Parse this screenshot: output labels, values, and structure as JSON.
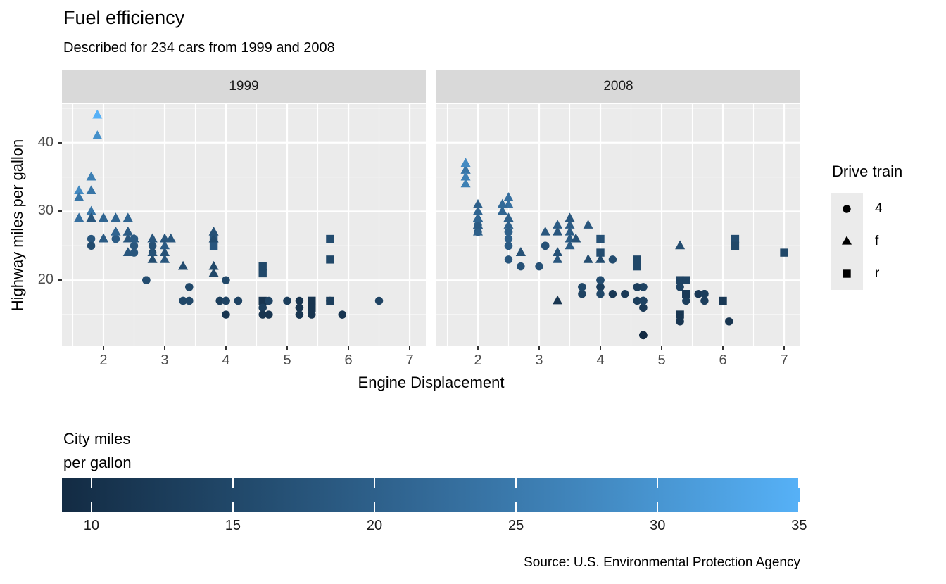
{
  "title": "Fuel efficiency",
  "subtitle": "Described for 234 cars from 1999 and 2008",
  "caption": "Source: U.S. Environmental Protection Agency",
  "facets": [
    {
      "label": "1999"
    },
    {
      "label": "2008"
    }
  ],
  "axes": {
    "x_label": "Engine Displacement",
    "y_label": "Highway miles per gallon",
    "x_ticks": [
      2,
      3,
      4,
      5,
      6,
      7
    ],
    "x_minor": [
      1.5,
      2.5,
      3.5,
      4.5,
      5.5,
      6.5
    ],
    "y_ticks": [
      20,
      30,
      40
    ],
    "y_minor": [
      15,
      25,
      35,
      45
    ],
    "x_domain": [
      1.322,
      7.264
    ],
    "y_domain": [
      10.4,
      45.6
    ]
  },
  "shape_legend": {
    "title": "Drive train",
    "items": [
      {
        "shape": "circle",
        "label": "4"
      },
      {
        "shape": "triangle",
        "label": "f"
      },
      {
        "shape": "square",
        "label": "r"
      }
    ]
  },
  "color_legend": {
    "title_lines": [
      "City miles",
      "per gallon"
    ],
    "ticks": [
      10,
      15,
      20,
      25,
      30,
      35
    ],
    "domain": [
      9,
      35
    ],
    "gradient_stops": [
      "#132B43",
      "#224A6C",
      "#336A98",
      "#448DC6",
      "#56B1F7"
    ]
  },
  "colors": {
    "panel_bg": "#EBEBEB",
    "strip_bg": "#D9D9D9",
    "grid": "#FFFFFF",
    "tick_mark": "#333333",
    "tick_label": "#4D4D4D",
    "legend_key_bg": "#EBEBEB",
    "symbol": "#000000"
  },
  "chart_data": {
    "type": "scatter",
    "facet_by": "year",
    "x": "displ",
    "y": "hwy",
    "color": "cty",
    "shape": "drv",
    "point_format": [
      "displ",
      "hwy",
      "cty",
      "drv"
    ],
    "shape_map": {
      "4": "circle",
      "f": "triangle",
      "r": "square"
    },
    "points_1999": [
      [
        1.8,
        29,
        18,
        "f"
      ],
      [
        1.8,
        29,
        21,
        "f"
      ],
      [
        2.8,
        26,
        16,
        "f"
      ],
      [
        2.8,
        26,
        18,
        "f"
      ],
      [
        1.8,
        26,
        18,
        "4"
      ],
      [
        1.8,
        25,
        16,
        "4"
      ],
      [
        2.8,
        25,
        15,
        "4"
      ],
      [
        2.8,
        25,
        17,
        "4"
      ],
      [
        2.8,
        24,
        15,
        "4"
      ],
      [
        5.7,
        17,
        13,
        "r"
      ],
      [
        5.7,
        26,
        16,
        "r"
      ],
      [
        5.7,
        23,
        15,
        "r"
      ],
      [
        5.7,
        17,
        13,
        "4"
      ],
      [
        6.5,
        17,
        14,
        "4"
      ],
      [
        2.4,
        27,
        19,
        "f"
      ],
      [
        3.1,
        26,
        18,
        "f"
      ],
      [
        2.4,
        24,
        18,
        "f"
      ],
      [
        3.0,
        24,
        17,
        "f"
      ],
      [
        3.3,
        22,
        16,
        "f"
      ],
      [
        3.3,
        22,
        16,
        "f"
      ],
      [
        3.8,
        22,
        15,
        "f"
      ],
      [
        3.8,
        21,
        15,
        "f"
      ],
      [
        3.9,
        17,
        13,
        "4"
      ],
      [
        3.9,
        17,
        14,
        "4"
      ],
      [
        5.2,
        17,
        11,
        "4"
      ],
      [
        5.2,
        15,
        11,
        "4"
      ],
      [
        3.9,
        17,
        13,
        "4"
      ],
      [
        5.2,
        16,
        11,
        "4"
      ],
      [
        5.9,
        15,
        11,
        "4"
      ],
      [
        5.2,
        15,
        11,
        "4"
      ],
      [
        5.2,
        16,
        11,
        "4"
      ],
      [
        5.9,
        15,
        11,
        "4"
      ],
      [
        4.6,
        17,
        11,
        "r"
      ],
      [
        5.4,
        17,
        11,
        "r"
      ],
      [
        4.0,
        17,
        14,
        "4"
      ],
      [
        4.0,
        17,
        15,
        "4"
      ],
      [
        4.0,
        17,
        14,
        "4"
      ],
      [
        5.0,
        17,
        13,
        "4"
      ],
      [
        4.2,
        17,
        14,
        "4"
      ],
      [
        4.2,
        17,
        14,
        "4"
      ],
      [
        4.6,
        16,
        13,
        "4"
      ],
      [
        4.6,
        16,
        13,
        "4"
      ],
      [
        5.4,
        15,
        11,
        "4"
      ],
      [
        3.8,
        26,
        18,
        "r"
      ],
      [
        3.8,
        25,
        18,
        "r"
      ],
      [
        4.6,
        21,
        15,
        "r"
      ],
      [
        4.6,
        22,
        15,
        "r"
      ],
      [
        1.6,
        33,
        28,
        "f"
      ],
      [
        1.6,
        32,
        24,
        "f"
      ],
      [
        1.6,
        32,
        25,
        "f"
      ],
      [
        1.6,
        29,
        23,
        "f"
      ],
      [
        1.6,
        32,
        24,
        "f"
      ],
      [
        2.4,
        26,
        18,
        "f"
      ],
      [
        2.4,
        27,
        18,
        "f"
      ],
      [
        2.5,
        26,
        18,
        "f"
      ],
      [
        2.5,
        26,
        18,
        "f"
      ],
      [
        2.0,
        26,
        19,
        "f"
      ],
      [
        2.0,
        29,
        19,
        "f"
      ],
      [
        4.0,
        20,
        15,
        "4"
      ],
      [
        4.7,
        17,
        14,
        "4"
      ],
      [
        4.0,
        15,
        11,
        "4"
      ],
      [
        4.6,
        15,
        11,
        "4"
      ],
      [
        5.4,
        17,
        11,
        "r"
      ],
      [
        5.4,
        16,
        11,
        "r"
      ],
      [
        4.0,
        17,
        14,
        "4"
      ],
      [
        5.0,
        17,
        13,
        "4"
      ],
      [
        2.4,
        27,
        19,
        "f"
      ],
      [
        2.4,
        29,
        21,
        "f"
      ],
      [
        3.0,
        26,
        18,
        "f"
      ],
      [
        3.0,
        25,
        19,
        "f"
      ],
      [
        3.3,
        17,
        14,
        "4"
      ],
      [
        3.3,
        17,
        15,
        "4"
      ],
      [
        3.1,
        26,
        18,
        "f"
      ],
      [
        3.8,
        26,
        16,
        "f"
      ],
      [
        3.8,
        27,
        17,
        "f"
      ],
      [
        2.5,
        25,
        18,
        "4"
      ],
      [
        2.5,
        24,
        18,
        "4"
      ],
      [
        2.2,
        26,
        21,
        "4"
      ],
      [
        2.2,
        26,
        19,
        "4"
      ],
      [
        2.5,
        26,
        19,
        "4"
      ],
      [
        2.5,
        26,
        19,
        "4"
      ],
      [
        2.7,
        20,
        15,
        "4"
      ],
      [
        2.7,
        20,
        16,
        "4"
      ],
      [
        3.4,
        19,
        15,
        "4"
      ],
      [
        3.4,
        17,
        15,
        "4"
      ],
      [
        2.2,
        29,
        21,
        "f"
      ],
      [
        2.2,
        27,
        21,
        "f"
      ],
      [
        3.0,
        26,
        18,
        "f"
      ],
      [
        3.0,
        26,
        18,
        "f"
      ],
      [
        2.2,
        27,
        21,
        "f"
      ],
      [
        2.2,
        29,
        21,
        "f"
      ],
      [
        3.0,
        26,
        18,
        "f"
      ],
      [
        1.8,
        30,
        24,
        "f"
      ],
      [
        1.8,
        33,
        24,
        "f"
      ],
      [
        1.8,
        35,
        26,
        "f"
      ],
      [
        4.7,
        15,
        11,
        "4"
      ],
      [
        3.0,
        23,
        18,
        "f"
      ],
      [
        2.7,
        20,
        15,
        "4"
      ],
      [
        2.7,
        20,
        16,
        "4"
      ],
      [
        3.4,
        17,
        15,
        "4"
      ],
      [
        3.4,
        19,
        15,
        "4"
      ],
      [
        2.0,
        29,
        21,
        "f"
      ],
      [
        2.0,
        26,
        19,
        "f"
      ],
      [
        2.8,
        24,
        17,
        "f"
      ],
      [
        1.9,
        44,
        33,
        "f"
      ],
      [
        2.0,
        29,
        21,
        "f"
      ],
      [
        2.0,
        26,
        19,
        "f"
      ],
      [
        2.8,
        23,
        16,
        "f"
      ],
      [
        2.8,
        24,
        17,
        "f"
      ],
      [
        1.9,
        44,
        35,
        "f"
      ],
      [
        1.9,
        41,
        29,
        "f"
      ],
      [
        2.0,
        29,
        21,
        "f"
      ],
      [
        2.0,
        26,
        19,
        "f"
      ],
      [
        1.8,
        29,
        21,
        "f"
      ],
      [
        1.8,
        29,
        18,
        "f"
      ],
      [
        2.8,
        26,
        16,
        "f"
      ],
      [
        2.8,
        26,
        18,
        "f"
      ]
    ],
    "points_2008": [
      [
        2.0,
        31,
        20,
        "f"
      ],
      [
        2.0,
        30,
        21,
        "f"
      ],
      [
        3.1,
        27,
        18,
        "f"
      ],
      [
        2.0,
        28,
        20,
        "4"
      ],
      [
        2.0,
        27,
        19,
        "4"
      ],
      [
        3.1,
        25,
        17,
        "4"
      ],
      [
        3.1,
        25,
        15,
        "4"
      ],
      [
        3.1,
        25,
        17,
        "4"
      ],
      [
        4.2,
        23,
        16,
        "4"
      ],
      [
        5.3,
        20,
        14,
        "r"
      ],
      [
        5.3,
        15,
        11,
        "r"
      ],
      [
        5.3,
        20,
        14,
        "r"
      ],
      [
        6.0,
        17,
        12,
        "r"
      ],
      [
        6.2,
        26,
        16,
        "r"
      ],
      [
        6.2,
        25,
        15,
        "r"
      ],
      [
        7.0,
        24,
        15,
        "r"
      ],
      [
        5.3,
        19,
        14,
        "4"
      ],
      [
        5.3,
        14,
        11,
        "4"
      ],
      [
        2.4,
        30,
        22,
        "f"
      ],
      [
        3.5,
        29,
        18,
        "f"
      ],
      [
        3.6,
        26,
        17,
        "f"
      ],
      [
        3.3,
        24,
        17,
        "f"
      ],
      [
        3.3,
        24,
        17,
        "f"
      ],
      [
        3.3,
        17,
        11,
        "f"
      ],
      [
        3.8,
        23,
        16,
        "f"
      ],
      [
        4.0,
        23,
        16,
        "f"
      ],
      [
        3.7,
        19,
        15,
        "4"
      ],
      [
        3.7,
        18,
        14,
        "4"
      ],
      [
        4.7,
        19,
        14,
        "4"
      ],
      [
        4.7,
        19,
        14,
        "4"
      ],
      [
        4.7,
        12,
        9,
        "4"
      ],
      [
        4.7,
        17,
        13,
        "4"
      ],
      [
        4.7,
        12,
        9,
        "4"
      ],
      [
        4.7,
        17,
        13,
        "4"
      ],
      [
        5.7,
        18,
        13,
        "4"
      ],
      [
        4.7,
        16,
        12,
        "4"
      ],
      [
        4.7,
        12,
        9,
        "4"
      ],
      [
        4.7,
        17,
        13,
        "4"
      ],
      [
        4.7,
        17,
        13,
        "4"
      ],
      [
        4.7,
        16,
        12,
        "4"
      ],
      [
        5.7,
        17,
        13,
        "4"
      ],
      [
        5.4,
        18,
        12,
        "r"
      ],
      [
        4.0,
        19,
        13,
        "4"
      ],
      [
        4.6,
        19,
        13,
        "4"
      ],
      [
        4.6,
        17,
        13,
        "4"
      ],
      [
        5.4,
        17,
        13,
        "4"
      ],
      [
        4.0,
        26,
        17,
        "r"
      ],
      [
        4.0,
        24,
        16,
        "r"
      ],
      [
        4.6,
        23,
        15,
        "r"
      ],
      [
        4.6,
        22,
        15,
        "r"
      ],
      [
        5.4,
        20,
        14,
        "r"
      ],
      [
        1.8,
        34,
        26,
        "f"
      ],
      [
        1.8,
        36,
        25,
        "f"
      ],
      [
        1.8,
        36,
        24,
        "f"
      ],
      [
        2.0,
        29,
        21,
        "f"
      ],
      [
        2.4,
        30,
        21,
        "f"
      ],
      [
        2.4,
        31,
        21,
        "f"
      ],
      [
        3.3,
        28,
        19,
        "f"
      ],
      [
        2.0,
        28,
        20,
        "f"
      ],
      [
        2.0,
        27,
        20,
        "f"
      ],
      [
        2.7,
        24,
        17,
        "f"
      ],
      [
        2.7,
        24,
        16,
        "f"
      ],
      [
        2.7,
        24,
        17,
        "f"
      ],
      [
        3.0,
        22,
        17,
        "4"
      ],
      [
        3.7,
        19,
        15,
        "4"
      ],
      [
        4.7,
        12,
        9,
        "4"
      ],
      [
        4.7,
        19,
        14,
        "4"
      ],
      [
        5.7,
        18,
        13,
        "4"
      ],
      [
        6.1,
        14,
        11,
        "4"
      ],
      [
        4.2,
        18,
        12,
        "4"
      ],
      [
        4.4,
        18,
        12,
        "4"
      ],
      [
        5.4,
        18,
        12,
        "r"
      ],
      [
        4.0,
        19,
        13,
        "4"
      ],
      [
        4.6,
        19,
        13,
        "4"
      ],
      [
        2.5,
        31,
        23,
        "f"
      ],
      [
        2.5,
        32,
        23,
        "f"
      ],
      [
        3.5,
        27,
        19,
        "f"
      ],
      [
        3.5,
        26,
        19,
        "f"
      ],
      [
        3.5,
        25,
        19,
        "f"
      ],
      [
        4.0,
        20,
        14,
        "4"
      ],
      [
        5.6,
        18,
        12,
        "4"
      ],
      [
        3.8,
        28,
        18,
        "f"
      ],
      [
        5.3,
        25,
        16,
        "f"
      ],
      [
        2.5,
        27,
        20,
        "4"
      ],
      [
        2.5,
        25,
        19,
        "4"
      ],
      [
        2.5,
        26,
        20,
        "4"
      ],
      [
        2.5,
        23,
        18,
        "4"
      ],
      [
        2.5,
        25,
        20,
        "4"
      ],
      [
        2.5,
        27,
        20,
        "4"
      ],
      [
        2.5,
        25,
        19,
        "4"
      ],
      [
        2.5,
        27,
        20,
        "4"
      ],
      [
        4.0,
        20,
        16,
        "4"
      ],
      [
        4.7,
        17,
        14,
        "4"
      ],
      [
        2.4,
        31,
        21,
        "f"
      ],
      [
        2.4,
        31,
        21,
        "f"
      ],
      [
        3.5,
        28,
        19,
        "f"
      ],
      [
        2.4,
        31,
        21,
        "f"
      ],
      [
        2.4,
        31,
        22,
        "f"
      ],
      [
        3.3,
        27,
        18,
        "f"
      ],
      [
        1.8,
        37,
        28,
        "f"
      ],
      [
        1.8,
        35,
        26,
        "f"
      ],
      [
        5.7,
        18,
        13,
        "4"
      ],
      [
        3.3,
        23,
        18,
        "f"
      ],
      [
        2.7,
        22,
        17,
        "4"
      ],
      [
        4.0,
        18,
        15,
        "4"
      ],
      [
        4.0,
        20,
        16,
        "4"
      ],
      [
        2.0,
        29,
        21,
        "f"
      ],
      [
        2.0,
        29,
        22,
        "f"
      ],
      [
        2.0,
        29,
        22,
        "f"
      ],
      [
        2.0,
        29,
        21,
        "f"
      ],
      [
        2.5,
        29,
        21,
        "f"
      ],
      [
        2.5,
        29,
        21,
        "f"
      ],
      [
        2.5,
        28,
        20,
        "f"
      ],
      [
        2.5,
        29,
        20,
        "f"
      ],
      [
        2.0,
        28,
        19,
        "f"
      ],
      [
        2.0,
        29,
        21,
        "f"
      ],
      [
        3.6,
        26,
        17,
        "f"
      ]
    ]
  }
}
